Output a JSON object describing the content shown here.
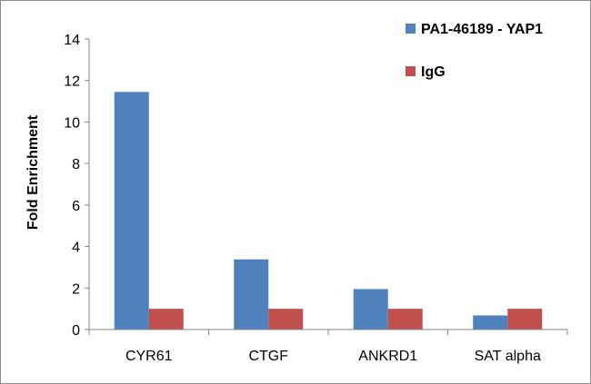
{
  "chart_data": {
    "type": "bar",
    "categories": [
      "CYR61",
      "CTGF",
      "ANKRD1",
      "SAT alpha"
    ],
    "series": [
      {
        "name": "PA1-46189 - YAP1",
        "color": "#4f81bd",
        "values": [
          11.45,
          3.38,
          1.95,
          0.68
        ]
      },
      {
        "name": "IgG",
        "color": "#c0504d",
        "values": [
          1.0,
          1.0,
          1.0,
          1.0
        ]
      }
    ],
    "title": "",
    "xlabel": "",
    "ylabel": "Fold Enrichment",
    "ylim": [
      0,
      14
    ],
    "yticks": [
      0,
      2,
      4,
      6,
      8,
      10,
      12,
      14
    ],
    "ytick_labels": [
      "0",
      "2",
      "4",
      "6",
      "8",
      "10",
      "12",
      "14"
    ],
    "grid": false,
    "legend": "top-right"
  }
}
